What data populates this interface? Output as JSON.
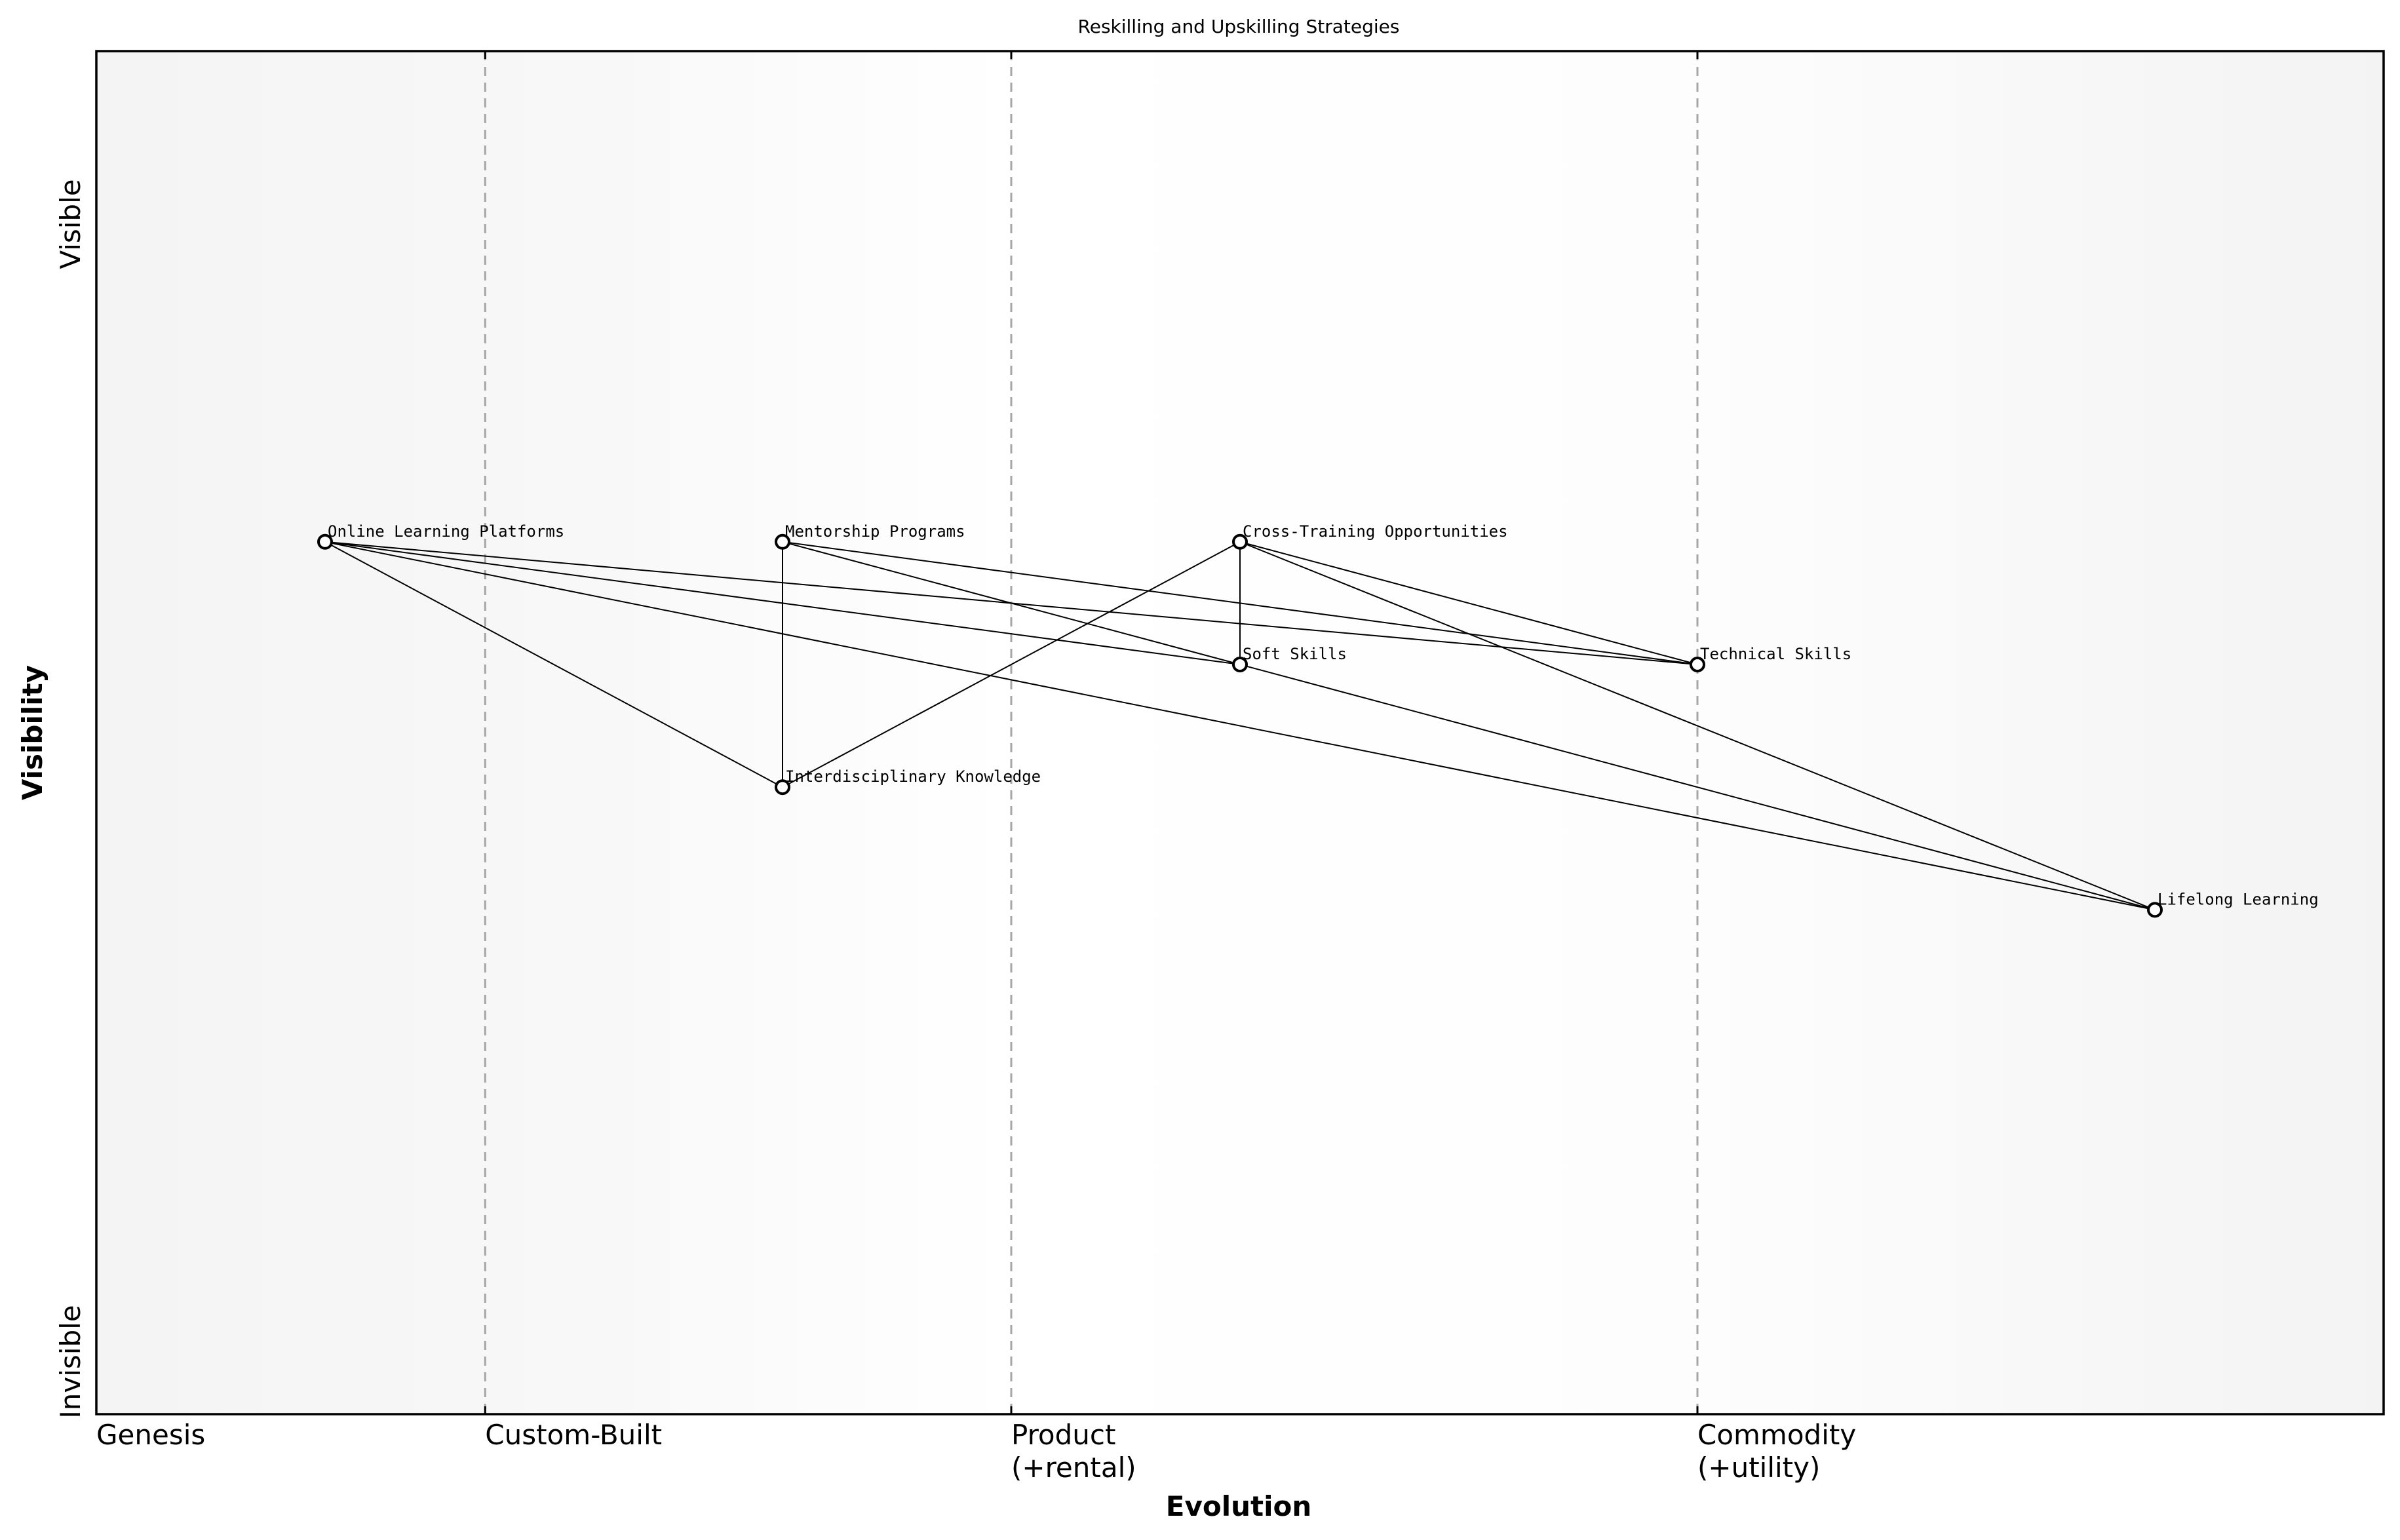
{
  "title": "Reskilling and Upskilling Strategies",
  "x_axis_title": "Evolution",
  "y_axis_title": "Visibility",
  "y_top_label": "Visible",
  "y_bottom_label": "Invisible",
  "stages": [
    {
      "lines": [
        "Genesis"
      ],
      "position": 0.0
    },
    {
      "lines": [
        "Custom-Built"
      ],
      "position": 0.17
    },
    {
      "lines": [
        "Product",
        "(+rental)"
      ],
      "position": 0.4
    },
    {
      "lines": [
        "Commodity",
        "(+utility)"
      ],
      "position": 0.7
    }
  ],
  "components": [
    {
      "id": "olp",
      "name": "Online Learning Platforms",
      "evolution": 0.1,
      "visibility": 0.64
    },
    {
      "id": "mp",
      "name": "Mentorship Programs",
      "evolution": 0.3,
      "visibility": 0.64
    },
    {
      "id": "cto",
      "name": "Cross-Training Opportunities",
      "evolution": 0.5,
      "visibility": 0.64
    },
    {
      "id": "ss",
      "name": "Soft Skills",
      "evolution": 0.5,
      "visibility": 0.55
    },
    {
      "id": "ts",
      "name": "Technical Skills",
      "evolution": 0.7,
      "visibility": 0.55
    },
    {
      "id": "ik",
      "name": "Interdisciplinary Knowledge",
      "evolution": 0.3,
      "visibility": 0.46
    },
    {
      "id": "ll",
      "name": "Lifelong Learning",
      "evolution": 0.9,
      "visibility": 0.37
    }
  ],
  "links": [
    [
      "olp",
      "ts"
    ],
    [
      "olp",
      "ss"
    ],
    [
      "olp",
      "ik"
    ],
    [
      "olp",
      "ll"
    ],
    [
      "mp",
      "ts"
    ],
    [
      "mp",
      "ss"
    ],
    [
      "mp",
      "ik"
    ],
    [
      "cto",
      "ik"
    ],
    [
      "cto",
      "ss"
    ],
    [
      "cto",
      "ts"
    ],
    [
      "cto",
      "ll"
    ],
    [
      "ss",
      "ll"
    ]
  ]
}
